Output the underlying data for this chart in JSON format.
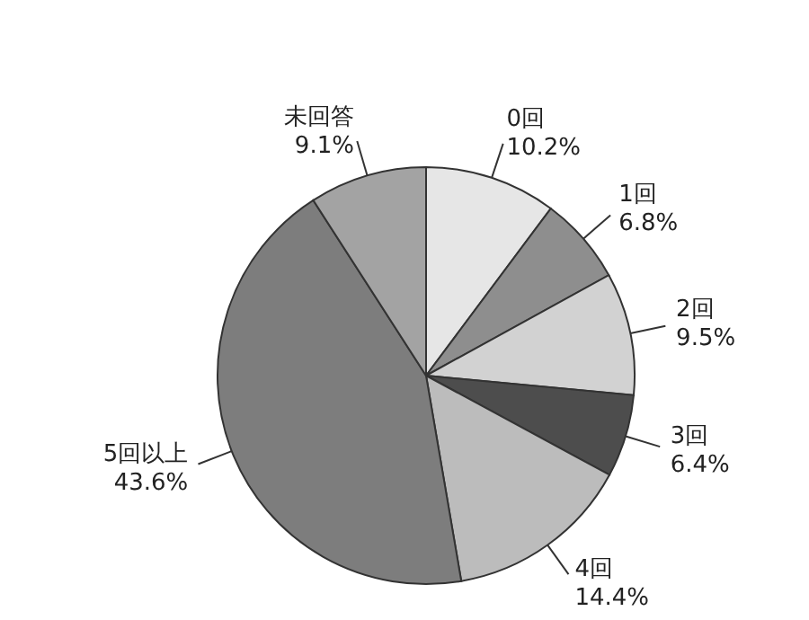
{
  "chart_data": {
    "type": "pie",
    "categories": [
      "0回",
      "1回",
      "2回",
      "3回",
      "4回",
      "5回以上",
      "未回答"
    ],
    "values": [
      10.2,
      6.8,
      9.5,
      6.4,
      14.4,
      43.6,
      9.1
    ],
    "value_labels": [
      "10.2%",
      "6.8%",
      "9.5%",
      "6.4%",
      "14.4%",
      "43.6%",
      "9.1%"
    ],
    "colors": [
      "#e6e6e6",
      "#8e8e8e",
      "#d2d2d2",
      "#4d4d4d",
      "#bcbcbc",
      "#7d7d7d",
      "#a3a3a3"
    ],
    "legend": false
  }
}
